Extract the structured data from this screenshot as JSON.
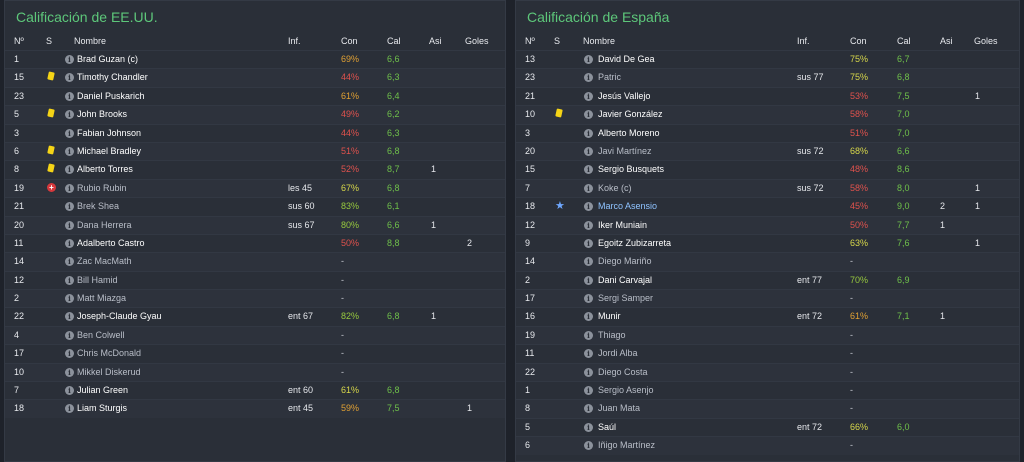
{
  "panels": [
    {
      "title": "Calificación de EE.UU.",
      "headers": {
        "num": "Nº",
        "s": "S",
        "name": "Nombre",
        "inf": "Inf.",
        "con": "Con",
        "cal": "Cal",
        "asi": "Asi",
        "goles": "Goles"
      },
      "rows": [
        {
          "num": "1",
          "s": "",
          "name": "Brad Guzan (c)",
          "status": "starter",
          "inf": "",
          "con": "69%",
          "con_class": "",
          "cal": "6,6",
          "asi": "",
          "goles": ""
        },
        {
          "num": "15",
          "s": "yellow-card",
          "name": "Timothy Chandler",
          "status": "starter",
          "inf": "",
          "con": "44%",
          "con_class": "low",
          "cal": "6,3",
          "asi": "",
          "goles": ""
        },
        {
          "num": "23",
          "s": "",
          "name": "Daniel Puskarich",
          "status": "starter",
          "inf": "",
          "con": "61%",
          "con_class": "",
          "cal": "6,4",
          "asi": "",
          "goles": ""
        },
        {
          "num": "5",
          "s": "yellow-card",
          "name": "John Brooks",
          "status": "starter",
          "inf": "",
          "con": "49%",
          "con_class": "low",
          "cal": "6,2",
          "asi": "",
          "goles": ""
        },
        {
          "num": "3",
          "s": "",
          "name": "Fabian Johnson",
          "status": "starter",
          "inf": "",
          "con": "44%",
          "con_class": "low",
          "cal": "6,3",
          "asi": "",
          "goles": ""
        },
        {
          "num": "6",
          "s": "yellow-card",
          "name": "Michael Bradley",
          "status": "starter",
          "inf": "",
          "con": "51%",
          "con_class": "low",
          "cal": "6,8",
          "asi": "",
          "goles": ""
        },
        {
          "num": "8",
          "s": "yellow-card",
          "name": "Alberto Torres",
          "status": "starter",
          "inf": "",
          "con": "52%",
          "con_class": "low",
          "cal": "8,7",
          "asi": "1",
          "goles": ""
        },
        {
          "num": "19",
          "s": "injury",
          "name": "Rubio Rubin",
          "status": "sub",
          "inf": "les 45",
          "con": "67%",
          "con_class": "good",
          "cal": "6,8",
          "asi": "",
          "goles": ""
        },
        {
          "num": "21",
          "s": "",
          "name": "Brek Shea",
          "status": "sub",
          "inf": "sus 60",
          "con": "83%",
          "con_class": "high",
          "cal": "6,1",
          "asi": "",
          "goles": ""
        },
        {
          "num": "20",
          "s": "",
          "name": "Dana Herrera",
          "status": "sub",
          "inf": "sus 67",
          "con": "80%",
          "con_class": "high",
          "cal": "6,6",
          "asi": "1",
          "goles": ""
        },
        {
          "num": "11",
          "s": "",
          "name": "Adalberto Castro",
          "status": "starter",
          "inf": "",
          "con": "50%",
          "con_class": "low",
          "cal": "8,8",
          "asi": "",
          "goles": "2"
        },
        {
          "num": "14",
          "s": "",
          "name": "Zac MacMath",
          "status": "sub",
          "inf": "",
          "con": "-",
          "con_class": "dash",
          "cal": "",
          "asi": "",
          "goles": ""
        },
        {
          "num": "12",
          "s": "",
          "name": "Bill Hamid",
          "status": "sub",
          "inf": "",
          "con": "-",
          "con_class": "dash",
          "cal": "",
          "asi": "",
          "goles": ""
        },
        {
          "num": "2",
          "s": "",
          "name": "Matt Miazga",
          "status": "sub",
          "inf": "",
          "con": "-",
          "con_class": "dash",
          "cal": "",
          "asi": "",
          "goles": ""
        },
        {
          "num": "22",
          "s": "",
          "name": "Joseph-Claude Gyau",
          "status": "starter",
          "inf": "ent 67",
          "con": "82%",
          "con_class": "high",
          "cal": "6,8",
          "asi": "1",
          "goles": ""
        },
        {
          "num": "4",
          "s": "",
          "name": "Ben Colwell",
          "status": "sub",
          "inf": "",
          "con": "-",
          "con_class": "dash",
          "cal": "",
          "asi": "",
          "goles": ""
        },
        {
          "num": "17",
          "s": "",
          "name": "Chris McDonald",
          "status": "sub",
          "inf": "",
          "con": "-",
          "con_class": "dash",
          "cal": "",
          "asi": "",
          "goles": ""
        },
        {
          "num": "10",
          "s": "",
          "name": "Mikkel Diskerud",
          "status": "sub",
          "inf": "",
          "con": "-",
          "con_class": "dash",
          "cal": "",
          "asi": "",
          "goles": ""
        },
        {
          "num": "7",
          "s": "",
          "name": "Julian Green",
          "status": "starter",
          "inf": "ent 60",
          "con": "61%",
          "con_class": "good",
          "cal": "6,8",
          "asi": "",
          "goles": ""
        },
        {
          "num": "18",
          "s": "",
          "name": "Liam Sturgis",
          "status": "starter",
          "inf": "ent 45",
          "con": "59%",
          "con_class": "",
          "cal": "7,5",
          "asi": "",
          "goles": "1"
        }
      ]
    },
    {
      "title": "Calificación de España",
      "headers": {
        "num": "Nº",
        "s": "S",
        "name": "Nombre",
        "inf": "Inf.",
        "con": "Con",
        "cal": "Cal",
        "asi": "Asi",
        "goles": "Goles"
      },
      "rows": [
        {
          "num": "13",
          "s": "",
          "name": "David De Gea",
          "status": "starter",
          "inf": "",
          "con": "75%",
          "con_class": "good",
          "cal": "6,7",
          "asi": "",
          "goles": ""
        },
        {
          "num": "23",
          "s": "",
          "name": "Patric",
          "status": "sub",
          "inf": "sus 77",
          "con": "75%",
          "con_class": "good",
          "cal": "6,8",
          "asi": "",
          "goles": ""
        },
        {
          "num": "21",
          "s": "",
          "name": "Jesús Vallejo",
          "status": "starter",
          "inf": "",
          "con": "53%",
          "con_class": "low",
          "cal": "7,5",
          "asi": "",
          "goles": "1"
        },
        {
          "num": "10",
          "s": "yellow-card",
          "name": "Javier González",
          "status": "starter",
          "inf": "",
          "con": "58%",
          "con_class": "low",
          "cal": "7,0",
          "asi": "",
          "goles": ""
        },
        {
          "num": "3",
          "s": "",
          "name": "Alberto Moreno",
          "status": "starter",
          "inf": "",
          "con": "51%",
          "con_class": "low",
          "cal": "7,0",
          "asi": "",
          "goles": ""
        },
        {
          "num": "20",
          "s": "",
          "name": "Javi Martínez",
          "status": "sub",
          "inf": "sus 72",
          "con": "68%",
          "con_class": "good",
          "cal": "6,6",
          "asi": "",
          "goles": ""
        },
        {
          "num": "15",
          "s": "",
          "name": "Sergio Busquets",
          "status": "starter",
          "inf": "",
          "con": "48%",
          "con_class": "low",
          "cal": "8,6",
          "asi": "",
          "goles": ""
        },
        {
          "num": "7",
          "s": "",
          "name": "Koke (c)",
          "status": "sub",
          "inf": "sus 72",
          "con": "58%",
          "con_class": "low",
          "cal": "8,0",
          "asi": "",
          "goles": "1"
        },
        {
          "num": "18",
          "s": "star",
          "name": "Marco Asensio",
          "status": "star",
          "inf": "",
          "con": "45%",
          "con_class": "low",
          "cal": "9,0",
          "asi": "2",
          "goles": "1"
        },
        {
          "num": "12",
          "s": "",
          "name": "Iker Muniain",
          "status": "starter",
          "inf": "",
          "con": "50%",
          "con_class": "low",
          "cal": "7,7",
          "asi": "1",
          "goles": ""
        },
        {
          "num": "9",
          "s": "",
          "name": "Egoitz Zubizarreta",
          "status": "starter",
          "inf": "",
          "con": "63%",
          "con_class": "good",
          "cal": "7,6",
          "asi": "",
          "goles": "1"
        },
        {
          "num": "14",
          "s": "",
          "name": "Diego Mariño",
          "status": "sub",
          "inf": "",
          "con": "-",
          "con_class": "dash",
          "cal": "",
          "asi": "",
          "goles": ""
        },
        {
          "num": "2",
          "s": "",
          "name": "Dani Carvajal",
          "status": "starter",
          "inf": "ent 77",
          "con": "70%",
          "con_class": "high",
          "cal": "6,9",
          "asi": "",
          "goles": ""
        },
        {
          "num": "17",
          "s": "",
          "name": "Sergi Samper",
          "status": "sub",
          "inf": "",
          "con": "-",
          "con_class": "dash",
          "cal": "",
          "asi": "",
          "goles": ""
        },
        {
          "num": "16",
          "s": "",
          "name": "Munir",
          "status": "starter",
          "inf": "ent 72",
          "con": "61%",
          "con_class": "",
          "cal": "7,1",
          "asi": "1",
          "goles": ""
        },
        {
          "num": "19",
          "s": "",
          "name": "Thiago",
          "status": "sub",
          "inf": "",
          "con": "-",
          "con_class": "dash",
          "cal": "",
          "asi": "",
          "goles": ""
        },
        {
          "num": "11",
          "s": "",
          "name": "Jordi Alba",
          "status": "sub",
          "inf": "",
          "con": "-",
          "con_class": "dash",
          "cal": "",
          "asi": "",
          "goles": ""
        },
        {
          "num": "22",
          "s": "",
          "name": "Diego Costa",
          "status": "sub",
          "inf": "",
          "con": "-",
          "con_class": "dash",
          "cal": "",
          "asi": "",
          "goles": ""
        },
        {
          "num": "1",
          "s": "",
          "name": "Sergio Asenjo",
          "status": "sub",
          "inf": "",
          "con": "-",
          "con_class": "dash",
          "cal": "",
          "asi": "",
          "goles": ""
        },
        {
          "num": "8",
          "s": "",
          "name": "Juan Mata",
          "status": "sub",
          "inf": "",
          "con": "-",
          "con_class": "dash",
          "cal": "",
          "asi": "",
          "goles": ""
        },
        {
          "num": "5",
          "s": "",
          "name": "Saúl",
          "status": "starter",
          "inf": "ent 72",
          "con": "66%",
          "con_class": "good",
          "cal": "6,0",
          "asi": "",
          "goles": ""
        },
        {
          "num": "6",
          "s": "",
          "name": "Iñigo Martínez",
          "status": "sub",
          "inf": "",
          "con": "-",
          "con_class": "dash",
          "cal": "",
          "asi": "",
          "goles": ""
        }
      ]
    }
  ]
}
